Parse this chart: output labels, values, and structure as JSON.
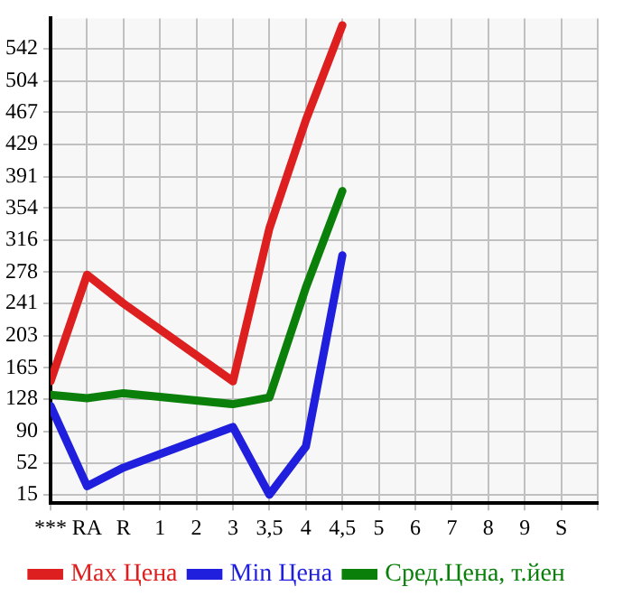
{
  "chart_data": {
    "type": "line",
    "categories": [
      "***",
      "RA",
      "R",
      "1",
      "2",
      "3",
      "3,5",
      "4",
      "4,5",
      "5",
      "6",
      "7",
      "8",
      "9",
      "S"
    ],
    "series": [
      {
        "name": "Max Цена",
        "color": "#dd1f1f",
        "values": [
          149,
          275,
          241,
          null,
          null,
          149,
          330,
          458,
          570,
          null,
          null,
          null,
          null,
          null,
          null
        ]
      },
      {
        "name": "Min Цена",
        "color": "#1f1fdd",
        "values": [
          120,
          25,
          47,
          null,
          null,
          95,
          15,
          72,
          298,
          null,
          null,
          null,
          null,
          null,
          null
        ]
      },
      {
        "name": "Сред.Цена, т.йен",
        "color": "#0a800a",
        "values": [
          133,
          129,
          135,
          null,
          null,
          122,
          130,
          260,
          374,
          null,
          null,
          null,
          null,
          null,
          null
        ]
      }
    ],
    "ylim": [
      5,
      578
    ],
    "yticks": [
      15,
      52,
      90,
      128,
      165,
      203,
      241,
      278,
      316,
      354,
      391,
      429,
      467,
      504,
      542
    ],
    "grid": true,
    "legend": "bottom",
    "marker": "none",
    "line_style": "solid"
  }
}
